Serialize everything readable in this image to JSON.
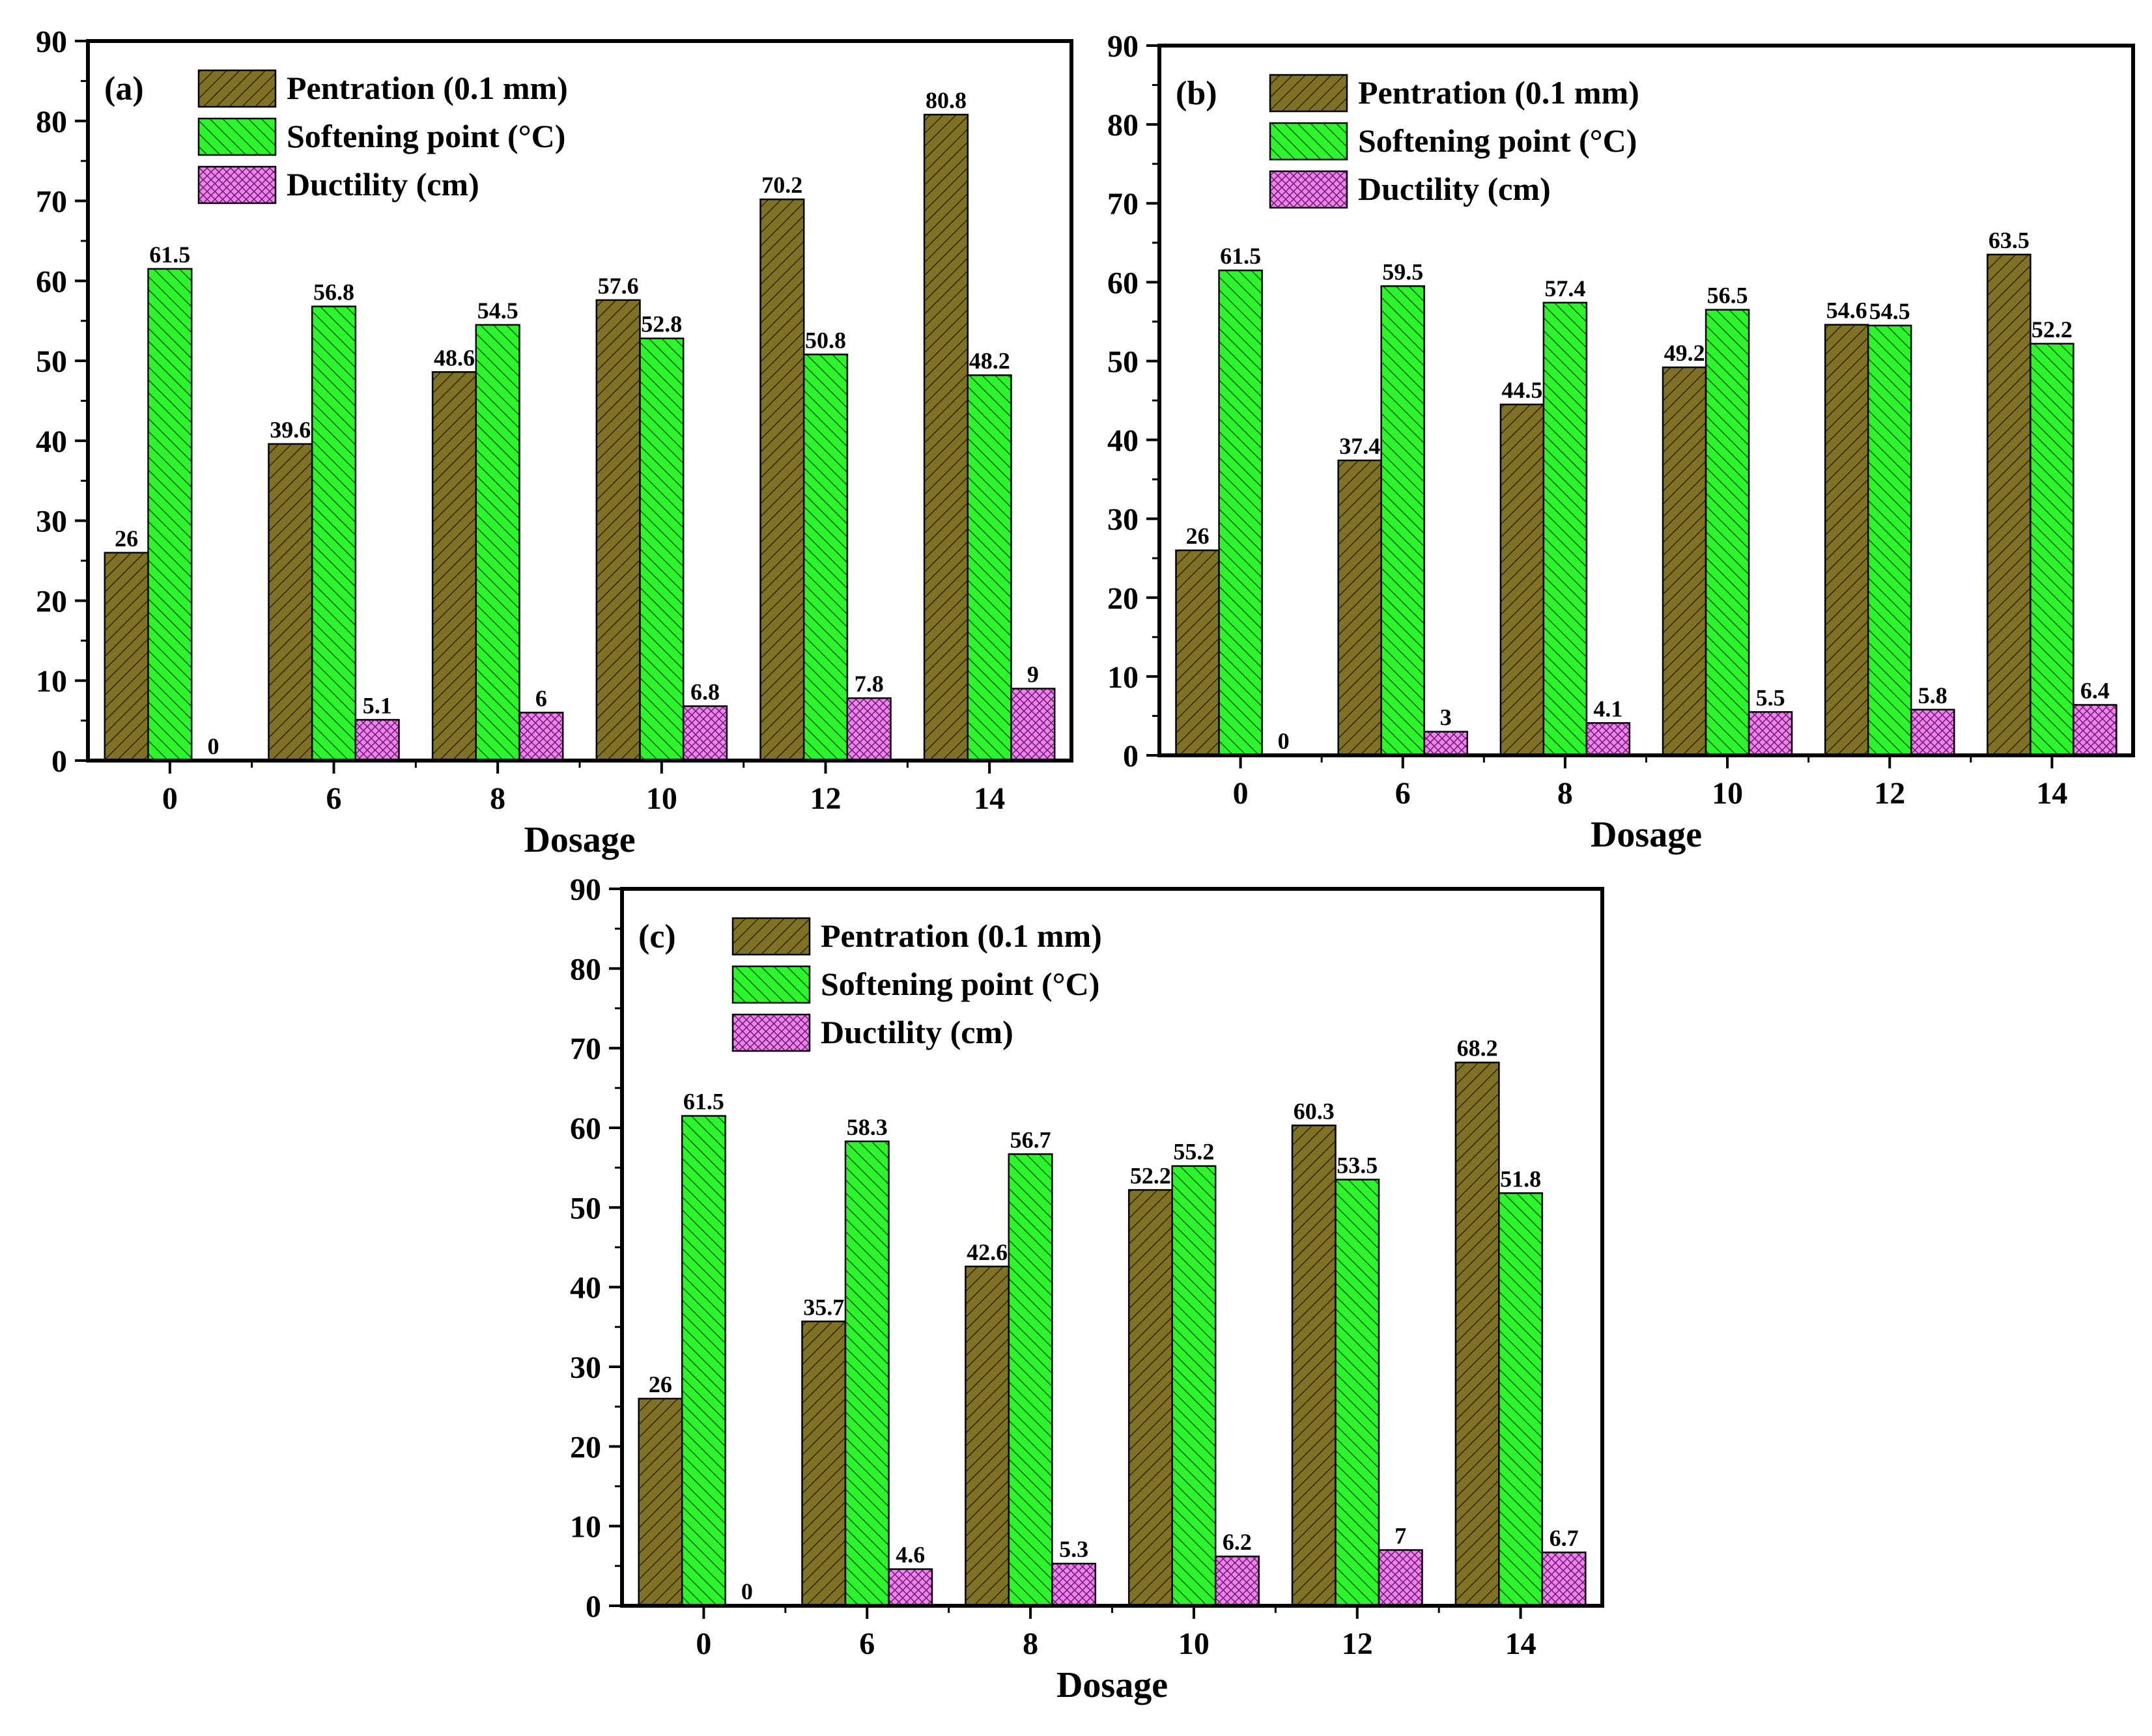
{
  "figure": {
    "legend_entries": [
      "Pentration (0.1 mm)",
      "Softening point (°C)",
      "Ductility (cm)"
    ],
    "colors": {
      "penetration": "#807225",
      "softening": "#2CF52C",
      "ductility": "#EE82EE",
      "axis": "#000000"
    }
  },
  "chart_data": [
    {
      "type": "bar",
      "panel_label": "(a)",
      "xlabel": "Dosage",
      "ylabel": "",
      "ylim": [
        0,
        90
      ],
      "yticks": [
        0,
        10,
        20,
        30,
        40,
        50,
        60,
        70,
        80,
        90
      ],
      "categories": [
        "0",
        "6",
        "8",
        "10",
        "12",
        "14"
      ],
      "legend_position": "top-left",
      "series": [
        {
          "name": "Pentration (0.1 mm)",
          "values": [
            26,
            39.6,
            48.6,
            57.6,
            70.2,
            80.8
          ],
          "labels": [
            "26",
            "39.6",
            "48.6",
            "57.6",
            "70.2",
            "80.8"
          ]
        },
        {
          "name": "Softening point (°C)",
          "values": [
            61.5,
            56.8,
            54.5,
            52.8,
            50.8,
            48.2
          ],
          "labels": [
            "61.5",
            "56.8",
            "54.5",
            "52.8",
            "50.8",
            "48.2"
          ]
        },
        {
          "name": "Ductility (cm)",
          "values": [
            0,
            5.1,
            6,
            6.8,
            7.8,
            9
          ],
          "labels": [
            "0",
            "5.1",
            "6",
            "6.8",
            "7.8",
            "9"
          ]
        }
      ]
    },
    {
      "type": "bar",
      "panel_label": "(b)",
      "xlabel": "Dosage",
      "ylabel": "",
      "ylim": [
        0,
        90
      ],
      "yticks": [
        0,
        10,
        20,
        30,
        40,
        50,
        60,
        70,
        80,
        90
      ],
      "categories": [
        "0",
        "6",
        "8",
        "10",
        "12",
        "14"
      ],
      "legend_position": "top-left",
      "series": [
        {
          "name": "Pentration (0.1 mm)",
          "values": [
            26,
            37.4,
            44.5,
            49.2,
            54.6,
            63.5
          ],
          "labels": [
            "26",
            "37.4",
            "44.5",
            "49.2",
            "54.6",
            "63.5"
          ]
        },
        {
          "name": "Softening point (°C)",
          "values": [
            61.5,
            59.5,
            57.4,
            56.5,
            54.5,
            52.2
          ],
          "labels": [
            "61.5",
            "59.5",
            "57.4",
            "56.5",
            "54.5",
            "52.2"
          ]
        },
        {
          "name": "Ductility (cm)",
          "values": [
            0,
            3,
            4.1,
            5.5,
            5.8,
            6.4
          ],
          "labels": [
            "0",
            "3",
            "4.1",
            "5.5",
            "5.8",
            "6.4"
          ]
        }
      ]
    },
    {
      "type": "bar",
      "panel_label": "(c)",
      "xlabel": "Dosage",
      "ylabel": "",
      "ylim": [
        0,
        90
      ],
      "yticks": [
        0,
        10,
        20,
        30,
        40,
        50,
        60,
        70,
        80,
        90
      ],
      "categories": [
        "0",
        "6",
        "8",
        "10",
        "12",
        "14"
      ],
      "legend_position": "top-left",
      "series": [
        {
          "name": "Pentration (0.1 mm)",
          "values": [
            26,
            35.7,
            42.6,
            52.2,
            60.3,
            68.2
          ],
          "labels": [
            "26",
            "35.7",
            "42.6",
            "52.2",
            "60.3",
            "68.2"
          ]
        },
        {
          "name": "Softening point (°C)",
          "values": [
            61.5,
            58.3,
            56.7,
            55.2,
            53.5,
            51.8
          ],
          "labels": [
            "61.5",
            "58.3",
            "56.7",
            "55.2",
            "53.5",
            "51.8"
          ]
        },
        {
          "name": "Ductility (cm)",
          "values": [
            0,
            4.6,
            5.3,
            6.2,
            7,
            6.7
          ],
          "labels": [
            "0",
            "4.6",
            "5.3",
            "6.2",
            "7",
            "6.7"
          ]
        }
      ]
    }
  ]
}
